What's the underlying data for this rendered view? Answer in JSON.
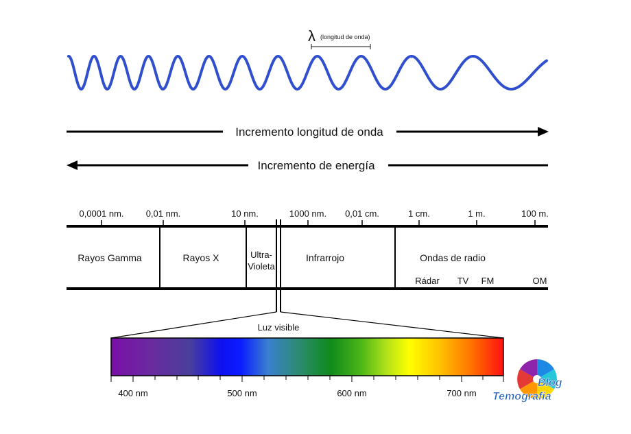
{
  "wave": {
    "color": "#2f4fcf",
    "lambda_symbol": "λ",
    "lambda_label": "(longitud de onda)"
  },
  "arrows": {
    "wavelength_label": "Incremento longitud de onda",
    "energy_label": "Incremento de energía"
  },
  "scale": {
    "ticks": [
      "0,0001 nm.",
      "0,01 nm.",
      "10 nm.",
      "1000 nm.",
      "0,01 cm.",
      "1 cm.",
      "1 m.",
      "100 m."
    ]
  },
  "regions": {
    "gamma": "Rayos Gamma",
    "xray": "Rayos X",
    "uv_line1": "Ultra-",
    "uv_line2": "Violeta",
    "infrared": "Infrarrojo",
    "radio": "Ondas de radio",
    "radio_sub": [
      "Rádar",
      "TV",
      "FM",
      "OM"
    ]
  },
  "visible": {
    "label": "Luz visible",
    "ticks": [
      "400 nm",
      "500 nm",
      "600 nm",
      "700 nm"
    ]
  },
  "logo": {
    "line1": "Blog",
    "line2": "Temografia",
    "text_color": "#1b5fbf"
  }
}
